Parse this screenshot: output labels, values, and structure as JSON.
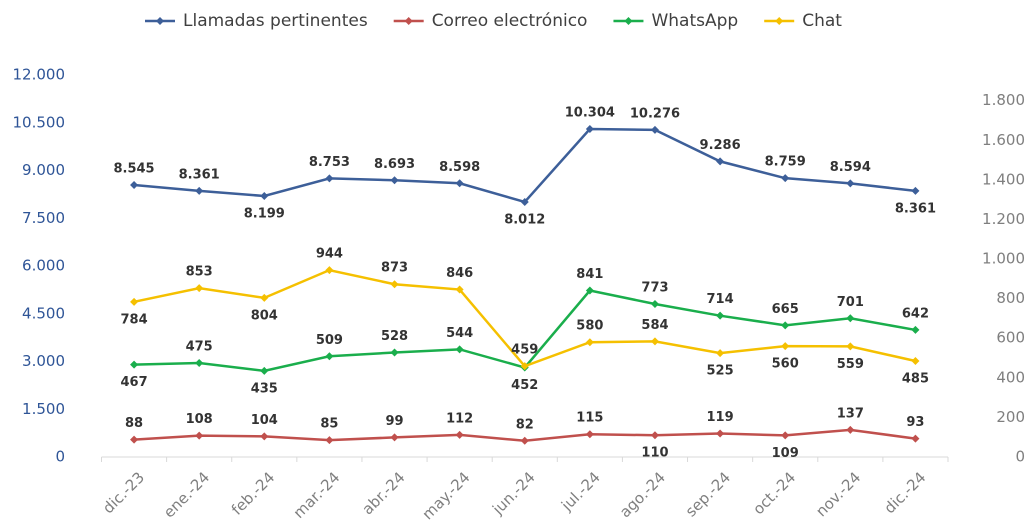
{
  "chart_data": {
    "type": "line",
    "categories": [
      "dic.-23",
      "ene.-24",
      "feb.-24",
      "mar.-24",
      "abr.-24",
      "may.-24",
      "jun.-24",
      "jul.-24",
      "ago.-24",
      "sep.-24",
      "oct.-24",
      "nov.-24",
      "dic.-24"
    ],
    "series": [
      {
        "name": "Llamadas pertinentes",
        "color": "#3d5f99",
        "values": [
          8545,
          8361,
          8199,
          8753,
          8693,
          8598,
          8012,
          10304,
          10276,
          9286,
          8759,
          8594,
          8361
        ],
        "value_labels": [
          "8.545",
          "8.361",
          "8.199",
          "8.753",
          "8.693",
          "8.598",
          "8.012",
          "10.304",
          "10.276",
          "9.286",
          "8.759",
          "8.594",
          "8.361"
        ]
      },
      {
        "name": "Correo electrónico",
        "color": "#c0504d",
        "axis": "y2",
        "values": [
          88,
          108,
          104,
          85,
          99,
          112,
          82,
          115,
          110,
          119,
          109,
          137,
          93
        ]
      },
      {
        "name": "WhatsApp",
        "color": "#1aae4c",
        "axis": "y2",
        "values": [
          467,
          475,
          435,
          509,
          528,
          544,
          452,
          841,
          773,
          714,
          665,
          701,
          642
        ]
      },
      {
        "name": "Chat",
        "color": "#f5c000",
        "axis": "y2",
        "values": [
          784,
          853,
          804,
          944,
          873,
          846,
          459,
          580,
          584,
          525,
          560,
          559,
          485
        ]
      }
    ],
    "ylim": [
      0,
      12000
    ],
    "yticks": [
      0,
      {
        "value": 1500,
        "label": "1.500"
      },
      {
        "value": 3000,
        "label": "3.000"
      },
      {
        "value": 4500,
        "label": "4.500"
      },
      {
        "value": 6000,
        "label": "6.000"
      },
      {
        "value": 7500,
        "label": "7.500"
      },
      {
        "value": 9000,
        "label": "9.000"
      },
      {
        "value": 10500,
        "label": "10.500"
      },
      {
        "value": 12000,
        "label": "12.000"
      }
    ],
    "y2lim": [
      0,
      1930
    ],
    "y2ticks": [
      0,
      200,
      400,
      600,
      800,
      {
        "value": 1000,
        "label": "1.000"
      },
      {
        "value": 1200,
        "label": "1.200"
      },
      {
        "value": 1400,
        "label": "1.400"
      },
      {
        "value": 1600,
        "label": "1.600"
      },
      {
        "value": 1800,
        "label": "1.800"
      }
    ],
    "legend": "top",
    "grid": false
  }
}
